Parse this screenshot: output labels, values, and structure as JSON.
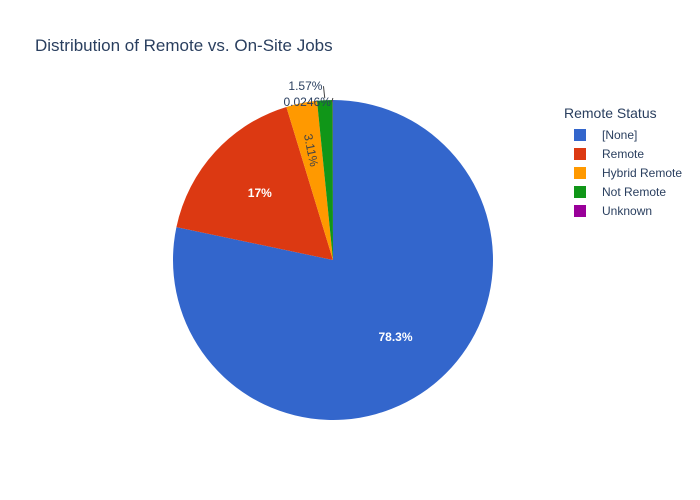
{
  "chart_data": {
    "type": "pie",
    "title": "Distribution of Remote vs. On-Site Jobs",
    "legend_title": "Remote Status",
    "legend_position": "top-right",
    "slices": [
      {
        "label": "[None]",
        "percent": 78.3,
        "display": "78.3%",
        "color": "#3366cc"
      },
      {
        "label": "Remote",
        "percent": 17.0,
        "display": "17%",
        "color": "#dc3912"
      },
      {
        "label": "Hybrid Remote",
        "percent": 3.11,
        "display": "3.11%",
        "color": "#ff9900"
      },
      {
        "label": "Not Remote",
        "percent": 1.57,
        "display": "1.57%",
        "color": "#109618"
      },
      {
        "label": "Unknown",
        "percent": 0.0246,
        "display": "0.0246%",
        "color": "#990099"
      }
    ]
  }
}
